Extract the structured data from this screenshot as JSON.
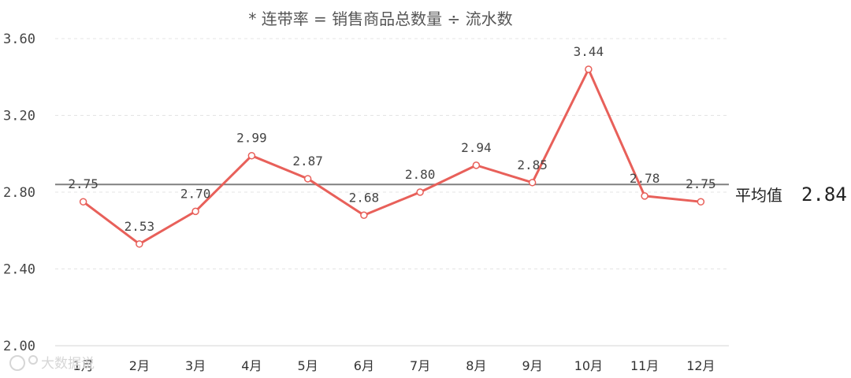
{
  "chart_data": {
    "type": "line",
    "title": "* 连带率 = 销售商品总数量 ÷ 流水数",
    "categories": [
      "1月",
      "2月",
      "3月",
      "4月",
      "5月",
      "6月",
      "7月",
      "8月",
      "9月",
      "10月",
      "11月",
      "12月"
    ],
    "series": [
      {
        "values": [
          2.75,
          2.53,
          2.7,
          2.99,
          2.87,
          2.68,
          2.8,
          2.94,
          2.85,
          3.44,
          2.78,
          2.75
        ]
      }
    ],
    "data_labels": [
      "2.75",
      "2.53",
      "2.70",
      "2.99",
      "2.87",
      "2.68",
      "2.80",
      "2.94",
      "2.85",
      "3.44",
      "2.78",
      "2.75"
    ],
    "yticks": [
      "2.00",
      "2.40",
      "2.80",
      "3.20",
      "3.60"
    ],
    "ylim": [
      2.0,
      3.6
    ],
    "grid": true,
    "average": {
      "label": "平均值",
      "value_text": "2.84",
      "value": 2.84
    },
    "colors": {
      "line": "#e8605a",
      "average": "#808080",
      "grid": "#e4e4e4"
    }
  },
  "watermark": {
    "text": "大数据说",
    "icon": "logo-icon"
  }
}
